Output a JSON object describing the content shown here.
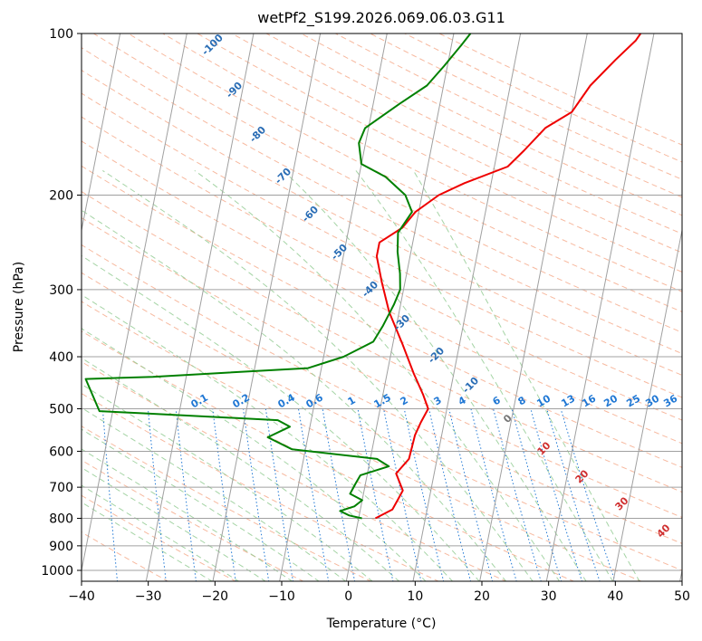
{
  "chart_data": {
    "type": "line",
    "subtype": "skew-t log-p diagram",
    "title": "wetPf2_S199.2026.069.06.03.G11",
    "xlabel": "Temperature (°C)",
    "ylabel": "Pressure (hPa)",
    "xlim": [
      -40,
      50
    ],
    "ylim": [
      1050,
      100
    ],
    "yscale": "log",
    "x_ticks": [
      -40,
      -30,
      -20,
      -10,
      0,
      10,
      20,
      30,
      40,
      50
    ],
    "y_ticks": [
      100,
      200,
      300,
      400,
      500,
      600,
      700,
      800,
      900,
      1000
    ],
    "grid": true,
    "colors": {
      "temperature": "#ee0000",
      "dewpoint": "#008000",
      "isotherm": "#a0a0a0",
      "isobar": "#a0a0a0",
      "dry_adiabat": "#f4a27f",
      "moist_adiabat": "#8fc98f",
      "mixing_ratio": "#1f77d4",
      "theta_label": "#2a6db5",
      "cape_label": "#d03030",
      "zero_label": "#777777",
      "outer_curve": "#dcc7a8"
    },
    "series": [
      {
        "name": "",
        "variable": "temperature",
        "points": [
          [
            2.5,
            800
          ],
          [
            4.8,
            770
          ],
          [
            5.3,
            740
          ],
          [
            5.8,
            710
          ],
          [
            4.3,
            660
          ],
          [
            5.8,
            620
          ],
          [
            6.0,
            560
          ],
          [
            6.5,
            530
          ],
          [
            7.2,
            500
          ],
          [
            6.0,
            470
          ],
          [
            4.0,
            430
          ],
          [
            1.5,
            380
          ],
          [
            -1.5,
            330
          ],
          [
            -3.5,
            290
          ],
          [
            -5.0,
            260
          ],
          [
            -5.0,
            245
          ],
          [
            -2.0,
            230
          ],
          [
            -0.5,
            215
          ],
          [
            2.5,
            200
          ],
          [
            6.0,
            190
          ],
          [
            12.0,
            177
          ],
          [
            14.0,
            165
          ],
          [
            16.5,
            150
          ],
          [
            20.0,
            140
          ],
          [
            22.0,
            125
          ],
          [
            25.0,
            112
          ],
          [
            27.5,
            103
          ],
          [
            28.0,
            100
          ]
        ]
      },
      {
        "name": "",
        "variable": "dewpoint",
        "points": [
          [
            0.5,
            800
          ],
          [
            -1.5,
            790
          ],
          [
            -3.0,
            775
          ],
          [
            -1.0,
            760
          ],
          [
            0.0,
            740
          ],
          [
            -2.0,
            720
          ],
          [
            -1.5,
            690
          ],
          [
            -1.0,
            665
          ],
          [
            3.0,
            640
          ],
          [
            1.0,
            620
          ],
          [
            -12.0,
            595
          ],
          [
            -16.0,
            565
          ],
          [
            -13.0,
            540
          ],
          [
            -15.0,
            525
          ],
          [
            -35.0,
            510
          ],
          [
            -42.0,
            505
          ],
          [
            -45.0,
            440
          ],
          [
            -35.0,
            436
          ],
          [
            -12.0,
            420
          ],
          [
            -7.0,
            400
          ],
          [
            -3.0,
            375
          ],
          [
            -2.0,
            350
          ],
          [
            -1.0,
            320
          ],
          [
            -0.5,
            300
          ],
          [
            -1.0,
            280
          ],
          [
            -2.0,
            255
          ],
          [
            -2.5,
            235
          ],
          [
            -1.0,
            215
          ],
          [
            -2.5,
            200
          ],
          [
            -6.0,
            185
          ],
          [
            -10.0,
            175
          ],
          [
            -11.0,
            160
          ],
          [
            -10.5,
            150
          ],
          [
            -6.0,
            135
          ],
          [
            -2.5,
            125
          ],
          [
            -0.5,
            115
          ],
          [
            1.5,
            105
          ],
          [
            2.5,
            100
          ]
        ]
      }
    ],
    "dry_adiabat_labels": [
      "-100",
      "-90",
      "-80",
      "-70",
      "-60",
      "-50",
      "-40",
      "-30",
      "-20",
      "-10"
    ],
    "mixing_ratio_labels": [
      "0.1",
      "0.2",
      "0.4",
      "0.6",
      "1",
      "1.5",
      "2",
      "3",
      "4",
      "6",
      "8",
      "10",
      "13",
      "16",
      "20",
      "25",
      "30",
      "36"
    ],
    "moist_adiabat_labels": [
      "0",
      "10",
      "20",
      "30",
      "40"
    ]
  }
}
